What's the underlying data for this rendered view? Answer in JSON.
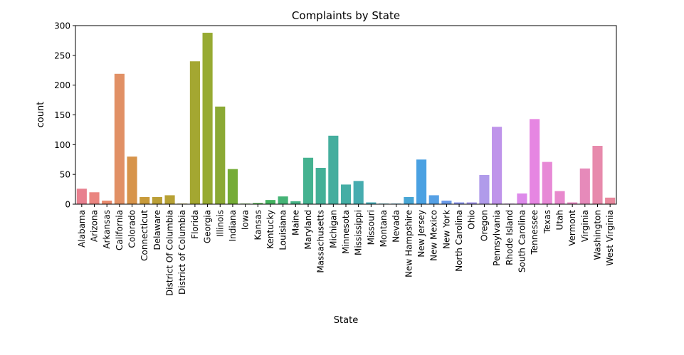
{
  "chart_data": {
    "type": "bar",
    "title": "Complaints by State",
    "xlabel": "State",
    "ylabel": "count",
    "ylim": [
      0,
      300
    ],
    "yticks": [
      0,
      50,
      100,
      150,
      200,
      250,
      300
    ],
    "grid": false,
    "categories": [
      "Alabama",
      "Arizona",
      "Arkansas",
      "California",
      "Colorado",
      "Connecticut",
      "Delaware",
      "District Of Columbia",
      "District of Columbia",
      "Florida",
      "Georgia",
      "Illinois",
      "Indiana",
      "Iowa",
      "Kansas",
      "Kentucky",
      "Louisiana",
      "Maine",
      "Maryland",
      "Massachusetts",
      "Michigan",
      "Minnesota",
      "Mississippi",
      "Missouri",
      "Montana",
      "Nevada",
      "New Hampshire",
      "New Jersey",
      "New Mexico",
      "New York",
      "North Carolina",
      "Ohio",
      "Oregon",
      "Pennsylvania",
      "Rhode Island",
      "South Carolina",
      "Tennessee",
      "Texas",
      "Utah",
      "Vermont",
      "Virginia",
      "Washington",
      "West Virginia"
    ],
    "values": [
      26,
      20,
      6,
      219,
      80,
      12,
      12,
      15,
      1,
      240,
      288,
      164,
      59,
      1,
      2,
      7,
      13,
      5,
      78,
      61,
      115,
      33,
      39,
      3,
      1,
      1,
      12,
      75,
      15,
      6,
      3,
      3,
      49,
      130,
      1,
      18,
      143,
      71,
      22,
      3,
      60,
      98,
      11
    ],
    "colors": [
      "#e8808f",
      "#ea8580",
      "#e98a6e",
      "#e19065",
      "#d7944b",
      "#c89a3a",
      "#bb9f37",
      "#b7a134",
      "#aea434",
      "#a4a731",
      "#97aa32",
      "#8ba934",
      "#75ac36",
      "#61b03d",
      "#51b04a",
      "#43b25f",
      "#45b376",
      "#45b385",
      "#45b290",
      "#44b097",
      "#45ae9e",
      "#45aea5",
      "#46acaf",
      "#46acb8",
      "#48aec2",
      "#48aacc",
      "#48a6d5",
      "#4aa1e2",
      "#55a0e5",
      "#6c9be9",
      "#8b95ec",
      "#a193eb",
      "#b09bea",
      "#bf94ea",
      "#d090e9",
      "#dd8aea",
      "#e686e2",
      "#e789d6",
      "#e888cd",
      "#e88bc4",
      "#e68aba",
      "#e78aac",
      "#e8889d"
    ]
  }
}
